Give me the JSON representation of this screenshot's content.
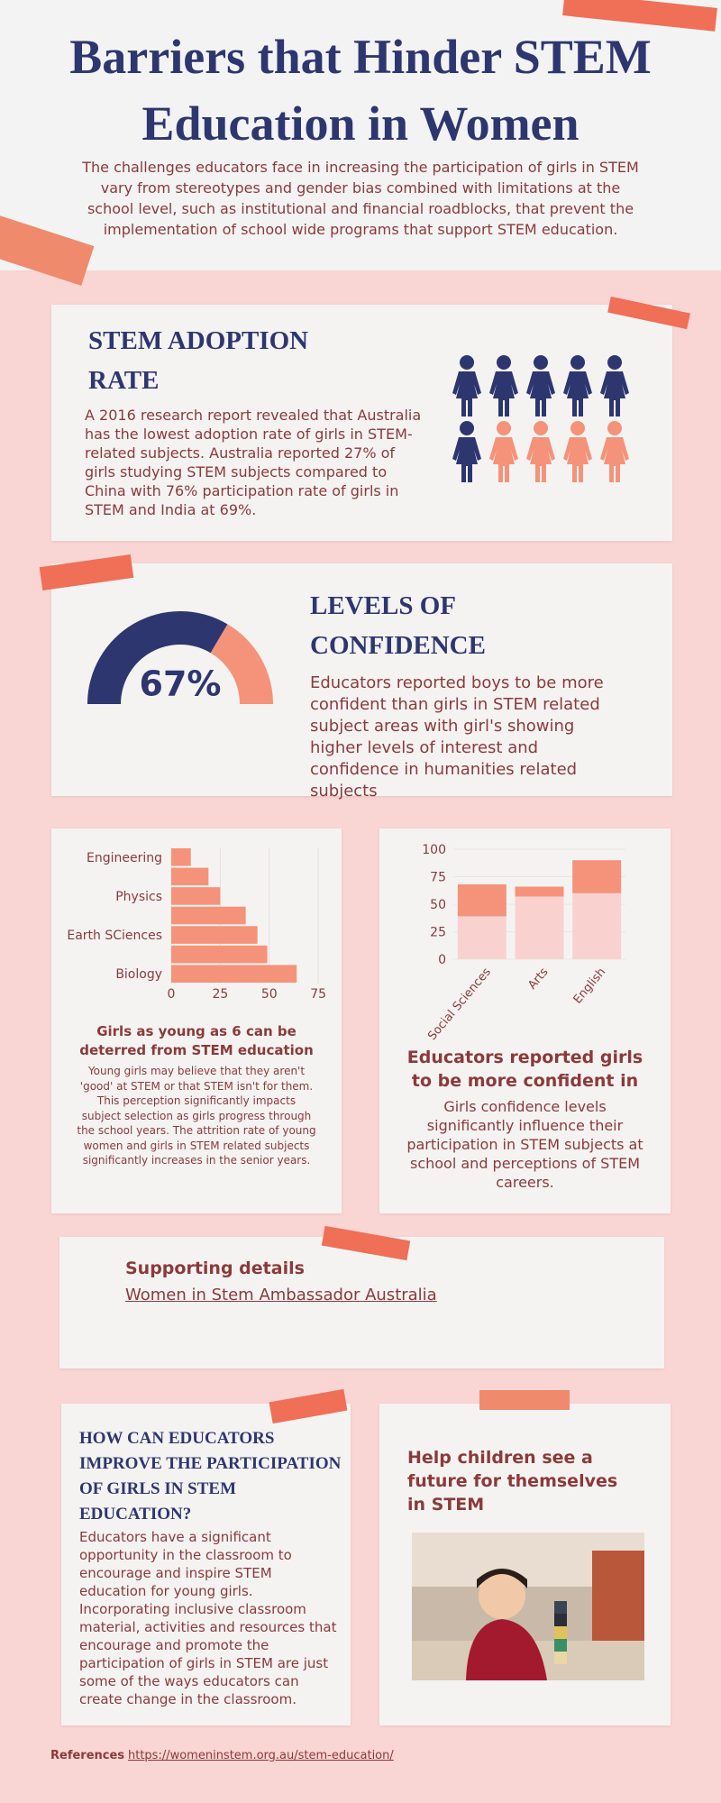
{
  "header": {
    "title": "Barriers that Hinder STEM Education in Women",
    "intro": "The challenges educators face in increasing the participation of girls in STEM vary from stereotypes and gender bias combined with limitations at the school level, such as institutional and financial roadblocks, that prevent the implementation of school wide programs that support STEM education."
  },
  "adoption": {
    "heading": "STEM ADOPTION RATE",
    "text": "A 2016 research report revealed that Australia has the lowest adoption rate of girls in STEM-related subjects. Australia reported 27% of girls studying STEM subjects compared to China with 76% participation rate of girls in STEM and India at 69%."
  },
  "confidence": {
    "heading": "LEVELS OF CONFIDENCE",
    "text": "Educators reported boys to be more confident than girls in STEM related subject areas with girl's showing higher levels of interest and confidence in humanities related subjects"
  },
  "subjects": {
    "heading": "Girls as young as 6 can be deterred from STEM education",
    "text": "Young girls may believe that they aren't 'good' at STEM or that STEM isn't for them. This perception significantly impacts subject selection as girls progress through the school years. The attrition rate of young women and girls in STEM related subjects significantly increases in the senior years."
  },
  "educators": {
    "heading": "Educators reported girls to be more confident in",
    "text": "Girls confidence levels significantly influence their participation in STEM subjects at school and perceptions of STEM careers."
  },
  "support": {
    "heading": "Supporting details",
    "link": "Women in Stem Ambassador Australia"
  },
  "improve": {
    "heading": "HOW CAN EDUCATORS IMPROVE THE PARTICIPATION OF GIRLS IN STEM EDUCATION?",
    "text": "Educators have a significant opportunity in the classroom to encourage and inspire STEM education for young girls. Incorporating inclusive classroom material, activities and resources that encourage and promote the participation of girls in STEM are just some of the ways educators can create change in the classroom."
  },
  "future": {
    "heading": "Help children see a future for themselves in STEM"
  },
  "references": {
    "label": "References",
    "link": "https://womeninstem.org.au/stem-education/"
  },
  "chart_data": [
    {
      "type": "gauge",
      "values": [
        67
      ],
      "value_labels": [
        "67%"
      ],
      "ylim": [
        0,
        100
      ],
      "color": "#2e3670",
      "track_color": "#f4937a"
    },
    {
      "type": "bar",
      "orientation": "horizontal",
      "categories": [
        "Engineering",
        null,
        "Physics",
        null,
        "Earth SCiences",
        null,
        "Biology"
      ],
      "values": [
        10,
        19,
        25,
        38,
        44,
        49,
        64
      ],
      "color": "#f4937a",
      "xlim": [
        0,
        80
      ],
      "xticks": [
        0,
        25,
        50,
        75
      ],
      "grid": true
    },
    {
      "type": "bar",
      "stacked": true,
      "categories": [
        "Social Sciences",
        "Arts",
        "English"
      ],
      "series": [
        {
          "color": "#f9d2cf",
          "values": [
            39,
            57,
            60
          ]
        },
        {
          "color": "#f4937a",
          "values": [
            29,
            9,
            30
          ]
        }
      ],
      "ylim": [
        0,
        100
      ],
      "yticks": [
        0,
        25,
        50,
        75,
        100
      ],
      "grid": true
    }
  ]
}
